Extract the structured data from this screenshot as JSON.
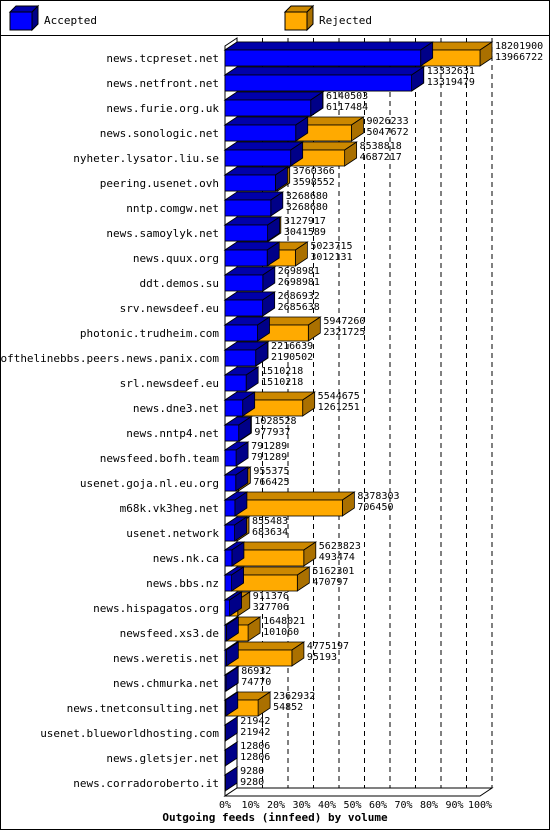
{
  "chart_data": {
    "type": "bar",
    "orientation": "horizontal",
    "stacked": "overlaid-3d",
    "title": "Outgoing feeds (innfeed) by volume",
    "colors": {
      "accepted": "#0000ff",
      "rejected": "#ffaa00"
    },
    "legend": {
      "accepted": "Accepted",
      "rejected": "Rejected",
      "position": "top"
    },
    "x_ticks": [
      "0%",
      "10%",
      "20%",
      "30%",
      "40%",
      "50%",
      "60%",
      "70%",
      "80%",
      "90%",
      "100%"
    ],
    "xlim": [
      0,
      100
    ],
    "max_value": 18201900,
    "rows": [
      {
        "name": "news.tcpreset.net",
        "total": 18201900,
        "accepted": 13966722,
        "total_label": "18201900",
        "accepted_label": "13966722"
      },
      {
        "name": "news.netfront.net",
        "total": 13332631,
        "accepted": 13319479,
        "total_label": "13332631",
        "accepted_label": "13319479"
      },
      {
        "name": "news.furie.org.uk",
        "total": 6140503,
        "accepted": 6117484,
        "total_label": "6140503",
        "accepted_label": "6117484"
      },
      {
        "name": "news.sonologic.net",
        "total": 9026233,
        "accepted": 5047672,
        "total_label": "9026233",
        "accepted_label": "5047672"
      },
      {
        "name": "nyheter.lysator.liu.se",
        "total": 8538818,
        "accepted": 4687217,
        "total_label": "8538818",
        "accepted_label": "4687217"
      },
      {
        "name": "peering.usenet.ovh",
        "total": 3760366,
        "accepted": 3598552,
        "total_label": "3760366",
        "accepted_label": "3598552"
      },
      {
        "name": "nntp.comgw.net",
        "total": 3268680,
        "accepted": 3268680,
        "total_label": "3268680",
        "accepted_label": "3268680"
      },
      {
        "name": "news.samoylyk.net",
        "total": 3127917,
        "accepted": 3041589,
        "total_label": "3127917",
        "accepted_label": "3041589"
      },
      {
        "name": "news.quux.org",
        "total": 5023715,
        "accepted": 3012131,
        "total_label": "5023715",
        "accepted_label": "3012131"
      },
      {
        "name": "ddt.demos.su",
        "total": 2698981,
        "accepted": 2698981,
        "total_label": "2698981",
        "accepted_label": "2698981"
      },
      {
        "name": "srv.newsdeef.eu",
        "total": 2686932,
        "accepted": 2685638,
        "total_label": "2686932",
        "accepted_label": "2685638"
      },
      {
        "name": "photonic.trudheim.com",
        "total": 5947260,
        "accepted": 2321725,
        "total_label": "5947260",
        "accepted_label": "2321725"
      },
      {
        "name": "endofthelinebbs.peers.news.panix.com",
        "total": 2216639,
        "accepted": 2190502,
        "total_label": "2216639",
        "accepted_label": "2190502"
      },
      {
        "name": "srl.newsdeef.eu",
        "total": 1510218,
        "accepted": 1510218,
        "total_label": "1510218",
        "accepted_label": "1510218"
      },
      {
        "name": "news.dne3.net",
        "total": 5544675,
        "accepted": 1261251,
        "total_label": "5544675",
        "accepted_label": "1261251"
      },
      {
        "name": "news.nntp4.net",
        "total": 1028528,
        "accepted": 977937,
        "total_label": "1028528",
        "accepted_label": "977937"
      },
      {
        "name": "newsfeed.bofh.team",
        "total": 791289,
        "accepted": 791289,
        "total_label": "791289",
        "accepted_label": "791289"
      },
      {
        "name": "usenet.goja.nl.eu.org",
        "total": 955375,
        "accepted": 766425,
        "total_label": "955375",
        "accepted_label": "766425"
      },
      {
        "name": "m68k.vk3heg.net",
        "total": 8378303,
        "accepted": 706450,
        "total_label": "8378303",
        "accepted_label": "706450"
      },
      {
        "name": "usenet.network",
        "total": 855483,
        "accepted": 683634,
        "total_label": "855483",
        "accepted_label": "683634"
      },
      {
        "name": "news.nk.ca",
        "total": 5623823,
        "accepted": 493474,
        "total_label": "5623823",
        "accepted_label": "493474"
      },
      {
        "name": "news.bbs.nz",
        "total": 5162301,
        "accepted": 470797,
        "total_label": "5162301",
        "accepted_label": "470797"
      },
      {
        "name": "news.hispagatos.org",
        "total": 911376,
        "accepted": 327706,
        "total_label": "911376",
        "accepted_label": "327706"
      },
      {
        "name": "newsfeed.xs3.de",
        "total": 1648021,
        "accepted": 101060,
        "total_label": "1648021",
        "accepted_label": "101060"
      },
      {
        "name": "news.weretis.net",
        "total": 4775197,
        "accepted": 95193,
        "total_label": "4775197",
        "accepted_label": "95193"
      },
      {
        "name": "news.chmurka.net",
        "total": 86932,
        "accepted": 74770,
        "total_label": "86932",
        "accepted_label": "74770"
      },
      {
        "name": "news.tnetconsulting.net",
        "total": 2362932,
        "accepted": 54852,
        "total_label": "2362932",
        "accepted_label": "54852"
      },
      {
        "name": "usenet.blueworldhosting.com",
        "total": 21942,
        "accepted": 21942,
        "total_label": "21942",
        "accepted_label": "21942"
      },
      {
        "name": "news.gletsjer.net",
        "total": 12806,
        "accepted": 12806,
        "total_label": "12806",
        "accepted_label": "12806"
      },
      {
        "name": "news.corradoroberto.it",
        "total": 9280,
        "accepted": 9280,
        "total_label": "9280",
        "accepted_label": "9280"
      }
    ]
  }
}
